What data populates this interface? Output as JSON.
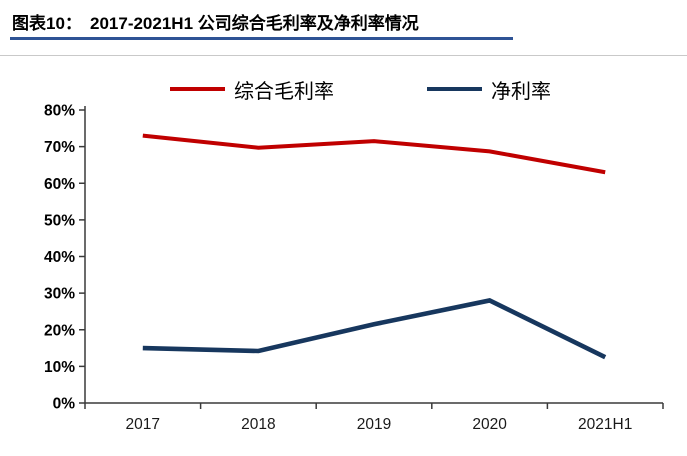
{
  "header": {
    "caption_label": "图表10：",
    "title": "2017-2021H1 公司综合毛利率及净利率情况"
  },
  "colors": {
    "title_underline": "#2E5395",
    "axis": "#3a3a3a",
    "text": "#000000",
    "gross_margin_line": "#C00000",
    "net_margin_line": "#17375E"
  },
  "chart_data": {
    "type": "line",
    "title": "2017-2021H1 公司综合毛利率及净利率情况",
    "categories": [
      "2017",
      "2018",
      "2019",
      "2020",
      "2021H1"
    ],
    "series": [
      {
        "name": "综合毛利率",
        "color": "#C00000",
        "values": [
          73.0,
          69.7,
          71.5,
          68.7,
          63.0
        ]
      },
      {
        "name": "净利率",
        "color": "#17375E",
        "values": [
          15.0,
          14.2,
          21.5,
          28.0,
          12.5
        ]
      }
    ],
    "xlabel": "",
    "ylabel": "",
    "ylim": [
      0,
      80
    ],
    "ytick_step": 10,
    "ytick_labels": [
      "0%",
      "10%",
      "20%",
      "30%",
      "40%",
      "50%",
      "60%",
      "70%",
      "80%"
    ],
    "grid": false,
    "legend_position": "top"
  }
}
